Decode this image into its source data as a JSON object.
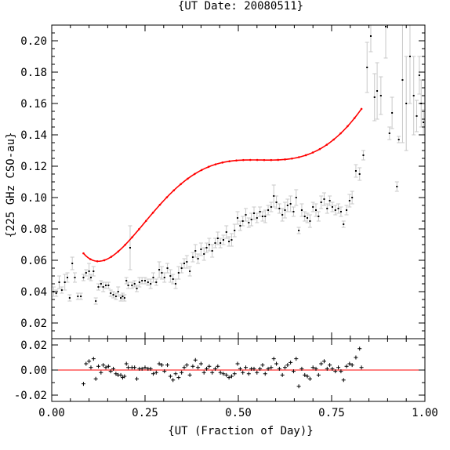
{
  "chart_data": {
    "type": "scatter",
    "title": "{UT Date: 20080511}",
    "xlabel": "{UT (Fraction of Day)}",
    "ylabel": "{225 GHz CSO-au}",
    "xlim": [
      0.0,
      1.0
    ],
    "x_ticks": [
      "0.00",
      "0.25",
      "0.50",
      "0.75",
      "1.00"
    ],
    "main": {
      "ylim": [
        0.01,
        0.21
      ],
      "y_ticks": [
        "0.02",
        "0.04",
        "0.06",
        "0.08",
        "0.10",
        "0.12",
        "0.14",
        "0.16",
        "0.18",
        "0.20"
      ],
      "points": [
        [
          0.005,
          0.04,
          0.003
        ],
        [
          0.012,
          0.039,
          0.002
        ],
        [
          0.02,
          0.046,
          0.004
        ],
        [
          0.027,
          0.041,
          0.002
        ],
        [
          0.035,
          0.046,
          0.005
        ],
        [
          0.042,
          0.049,
          0.003
        ],
        [
          0.048,
          0.036,
          0.002
        ],
        [
          0.055,
          0.058,
          0.004
        ],
        [
          0.062,
          0.049,
          0.003
        ],
        [
          0.07,
          0.037,
          0.002
        ],
        [
          0.078,
          0.037,
          0.002
        ],
        [
          0.085,
          0.049,
          0.002
        ],
        [
          0.092,
          0.052,
          0.002
        ],
        [
          0.1,
          0.053,
          0.005
        ],
        [
          0.105,
          0.049,
          0.002
        ],
        [
          0.112,
          0.053,
          0.003
        ],
        [
          0.118,
          0.034,
          0.002
        ],
        [
          0.125,
          0.043,
          0.002
        ],
        [
          0.132,
          0.045,
          0.002
        ],
        [
          0.138,
          0.043,
          0.003
        ],
        [
          0.145,
          0.044,
          0.002
        ],
        [
          0.152,
          0.044,
          0.002
        ],
        [
          0.158,
          0.039,
          0.002
        ],
        [
          0.165,
          0.038,
          0.002
        ],
        [
          0.172,
          0.037,
          0.002
        ],
        [
          0.178,
          0.04,
          0.003
        ],
        [
          0.185,
          0.036,
          0.002
        ],
        [
          0.19,
          0.037,
          0.002
        ],
        [
          0.195,
          0.036,
          0.002
        ],
        [
          0.2,
          0.047,
          0.002
        ],
        [
          0.205,
          0.044,
          0.002
        ],
        [
          0.21,
          0.068,
          0.014
        ],
        [
          0.215,
          0.044,
          0.002
        ],
        [
          0.222,
          0.045,
          0.002
        ],
        [
          0.228,
          0.042,
          0.002
        ],
        [
          0.235,
          0.046,
          0.003
        ],
        [
          0.242,
          0.047,
          0.002
        ],
        [
          0.25,
          0.047,
          0.002
        ],
        [
          0.258,
          0.046,
          0.002
        ],
        [
          0.265,
          0.045,
          0.003
        ],
        [
          0.272,
          0.049,
          0.003
        ],
        [
          0.28,
          0.046,
          0.002
        ],
        [
          0.288,
          0.054,
          0.005
        ],
        [
          0.295,
          0.052,
          0.004
        ],
        [
          0.302,
          0.049,
          0.003
        ],
        [
          0.31,
          0.055,
          0.003
        ],
        [
          0.318,
          0.05,
          0.004
        ],
        [
          0.325,
          0.048,
          0.003
        ],
        [
          0.332,
          0.045,
          0.003
        ],
        [
          0.34,
          0.052,
          0.004
        ],
        [
          0.348,
          0.055,
          0.003
        ],
        [
          0.355,
          0.058,
          0.003
        ],
        [
          0.362,
          0.059,
          0.004
        ],
        [
          0.37,
          0.053,
          0.003
        ],
        [
          0.378,
          0.062,
          0.003
        ],
        [
          0.385,
          0.066,
          0.004
        ],
        [
          0.392,
          0.061,
          0.003
        ],
        [
          0.4,
          0.067,
          0.004
        ],
        [
          0.408,
          0.064,
          0.004
        ],
        [
          0.415,
          0.068,
          0.003
        ],
        [
          0.422,
          0.07,
          0.004
        ],
        [
          0.43,
          0.066,
          0.004
        ],
        [
          0.438,
          0.071,
          0.003
        ],
        [
          0.445,
          0.074,
          0.004
        ],
        [
          0.452,
          0.071,
          0.003
        ],
        [
          0.46,
          0.073,
          0.003
        ],
        [
          0.468,
          0.078,
          0.004
        ],
        [
          0.475,
          0.072,
          0.003
        ],
        [
          0.482,
          0.073,
          0.004
        ],
        [
          0.49,
          0.079,
          0.004
        ],
        [
          0.498,
          0.087,
          0.004
        ],
        [
          0.505,
          0.082,
          0.003
        ],
        [
          0.512,
          0.085,
          0.003
        ],
        [
          0.52,
          0.089,
          0.004
        ],
        [
          0.528,
          0.084,
          0.003
        ],
        [
          0.535,
          0.086,
          0.004
        ],
        [
          0.542,
          0.09,
          0.004
        ],
        [
          0.55,
          0.087,
          0.003
        ],
        [
          0.558,
          0.091,
          0.003
        ],
        [
          0.565,
          0.088,
          0.003
        ],
        [
          0.572,
          0.088,
          0.004
        ],
        [
          0.58,
          0.092,
          0.003
        ],
        [
          0.588,
          0.094,
          0.003
        ],
        [
          0.595,
          0.101,
          0.007
        ],
        [
          0.602,
          0.097,
          0.004
        ],
        [
          0.61,
          0.093,
          0.003
        ],
        [
          0.618,
          0.089,
          0.004
        ],
        [
          0.625,
          0.092,
          0.005
        ],
        [
          0.632,
          0.095,
          0.004
        ],
        [
          0.64,
          0.096,
          0.005
        ],
        [
          0.648,
          0.091,
          0.003
        ],
        [
          0.655,
          0.1,
          0.005
        ],
        [
          0.662,
          0.079,
          0.002
        ],
        [
          0.67,
          0.092,
          0.004
        ],
        [
          0.678,
          0.088,
          0.003
        ],
        [
          0.685,
          0.087,
          0.003
        ],
        [
          0.692,
          0.085,
          0.004
        ],
        [
          0.7,
          0.094,
          0.003
        ],
        [
          0.708,
          0.092,
          0.004
        ],
        [
          0.715,
          0.088,
          0.003
        ],
        [
          0.722,
          0.097,
          0.004
        ],
        [
          0.73,
          0.099,
          0.004
        ],
        [
          0.738,
          0.093,
          0.003
        ],
        [
          0.745,
          0.098,
          0.003
        ],
        [
          0.752,
          0.094,
          0.003
        ],
        [
          0.76,
          0.092,
          0.003
        ],
        [
          0.768,
          0.093,
          0.003
        ],
        [
          0.775,
          0.091,
          0.003
        ],
        [
          0.782,
          0.083,
          0.002
        ],
        [
          0.79,
          0.092,
          0.003
        ],
        [
          0.798,
          0.098,
          0.004
        ],
        [
          0.805,
          0.1,
          0.004
        ],
        [
          0.815,
          0.117,
          0.004
        ],
        [
          0.825,
          0.115,
          0.004
        ],
        [
          0.835,
          0.127,
          0.003
        ],
        [
          0.845,
          0.183,
          0.016
        ],
        [
          0.855,
          0.203,
          0.01
        ],
        [
          0.865,
          0.164,
          0.015
        ],
        [
          0.872,
          0.168,
          0.018
        ],
        [
          0.882,
          0.165,
          0.012
        ],
        [
          0.895,
          0.209,
          0.02
        ],
        [
          0.905,
          0.141,
          0.004
        ],
        [
          0.912,
          0.154,
          0.01
        ],
        [
          0.925,
          0.107,
          0.003
        ],
        [
          0.93,
          0.137,
          0.002
        ],
        [
          0.94,
          0.175,
          0.04
        ],
        [
          0.95,
          0.16,
          0.03
        ],
        [
          0.96,
          0.19,
          0.03
        ],
        [
          0.97,
          0.165,
          0.025
        ],
        [
          0.978,
          0.152,
          0.01
        ],
        [
          0.985,
          0.178,
          0.012
        ],
        [
          0.99,
          0.16,
          0.015
        ],
        [
          0.996,
          0.148,
          0.008
        ]
      ],
      "fit_coeffs": [
        0.1286,
        -1.3636,
        8.8625,
        -22.1098,
        25.9298,
        -14.1068,
        2.8976
      ],
      "fit_range": [
        0.085,
        0.83
      ],
      "fit_color": "#ff0000",
      "errorbar_color": "#c8c8c8",
      "point_color": "#000000"
    },
    "residual": {
      "ylim": [
        -0.025,
        0.025
      ],
      "y_ticks": [
        "-0.02",
        "0.00",
        "0.02"
      ],
      "zero_line_color": "#ff0000",
      "points": [
        [
          0.085,
          -0.011
        ],
        [
          0.092,
          0.005
        ],
        [
          0.1,
          0.007
        ],
        [
          0.105,
          0.002
        ],
        [
          0.112,
          0.009
        ],
        [
          0.118,
          -0.007
        ],
        [
          0.125,
          0.003
        ],
        [
          0.132,
          -0.002
        ],
        [
          0.138,
          0.004
        ],
        [
          0.145,
          0.002
        ],
        [
          0.152,
          0.003
        ],
        [
          0.158,
          -0.001
        ],
        [
          0.165,
          0.001
        ],
        [
          0.172,
          -0.003
        ],
        [
          0.178,
          -0.004
        ],
        [
          0.185,
          -0.004
        ],
        [
          0.19,
          -0.006
        ],
        [
          0.195,
          -0.005
        ],
        [
          0.2,
          0.005
        ],
        [
          0.205,
          0.002
        ],
        [
          0.215,
          0.002
        ],
        [
          0.222,
          0.002
        ],
        [
          0.228,
          -0.007
        ],
        [
          0.235,
          0.001
        ],
        [
          0.242,
          0.001
        ],
        [
          0.25,
          0.002
        ],
        [
          0.258,
          0.001
        ],
        [
          0.265,
          0.001
        ],
        [
          0.272,
          -0.003
        ],
        [
          0.28,
          -0.002
        ],
        [
          0.288,
          0.005
        ],
        [
          0.295,
          0.004
        ],
        [
          0.302,
          -0.001
        ],
        [
          0.31,
          0.004
        ],
        [
          0.318,
          -0.005
        ],
        [
          0.325,
          -0.008
        ],
        [
          0.332,
          -0.003
        ],
        [
          0.34,
          -0.006
        ],
        [
          0.348,
          -0.002
        ],
        [
          0.355,
          0.002
        ],
        [
          0.362,
          0.004
        ],
        [
          0.37,
          -0.004
        ],
        [
          0.378,
          0.003
        ],
        [
          0.385,
          0.008
        ],
        [
          0.392,
          0.002
        ],
        [
          0.4,
          0.005
        ],
        [
          0.408,
          -0.002
        ],
        [
          0.415,
          0.001
        ],
        [
          0.422,
          0.003
        ],
        [
          0.43,
          -0.002
        ],
        [
          0.438,
          0.001
        ],
        [
          0.445,
          0.003
        ],
        [
          0.452,
          -0.002
        ],
        [
          0.46,
          -0.003
        ],
        [
          0.468,
          -0.004
        ],
        [
          0.475,
          -0.006
        ],
        [
          0.482,
          -0.005
        ],
        [
          0.49,
          -0.003
        ],
        [
          0.498,
          0.005
        ],
        [
          0.505,
          0.001
        ],
        [
          0.512,
          -0.002
        ],
        [
          0.52,
          0.002
        ],
        [
          0.528,
          -0.003
        ],
        [
          0.535,
          0.001
        ],
        [
          0.542,
          0.001
        ],
        [
          0.55,
          -0.002
        ],
        [
          0.558,
          0.001
        ],
        [
          0.565,
          0.004
        ],
        [
          0.572,
          -0.003
        ],
        [
          0.58,
          0.001
        ],
        [
          0.588,
          0.002
        ],
        [
          0.595,
          0.009
        ],
        [
          0.602,
          0.005
        ],
        [
          0.61,
          0.001
        ],
        [
          0.618,
          -0.004
        ],
        [
          0.625,
          0.002
        ],
        [
          0.632,
          0.004
        ],
        [
          0.64,
          0.006
        ],
        [
          0.648,
          -0.001
        ],
        [
          0.655,
          0.009
        ],
        [
          0.662,
          -0.013
        ],
        [
          0.67,
          0.001
        ],
        [
          0.678,
          -0.004
        ],
        [
          0.685,
          -0.005
        ],
        [
          0.692,
          -0.007
        ],
        [
          0.7,
          0.002
        ],
        [
          0.708,
          0.001
        ],
        [
          0.715,
          -0.004
        ],
        [
          0.722,
          0.005
        ],
        [
          0.73,
          0.007
        ],
        [
          0.738,
          0.001
        ],
        [
          0.745,
          0.004
        ],
        [
          0.752,
          0.001
        ],
        [
          0.76,
          -0.001
        ],
        [
          0.768,
          0.002
        ],
        [
          0.775,
          -0.001
        ],
        [
          0.782,
          -0.008
        ],
        [
          0.79,
          0.003
        ],
        [
          0.798,
          0.005
        ],
        [
          0.805,
          0.004
        ],
        [
          0.815,
          0.01
        ],
        [
          0.825,
          0.017
        ],
        [
          0.83,
          0.002
        ]
      ]
    }
  }
}
